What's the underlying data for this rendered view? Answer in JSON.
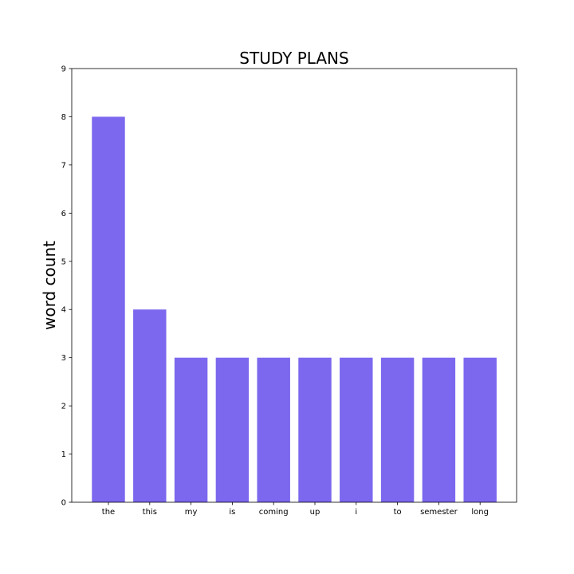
{
  "chart_data": {
    "type": "bar",
    "title": "STUDY PLANS",
    "xlabel": "",
    "ylabel": "word count",
    "categories": [
      "the",
      "this",
      "my",
      "is",
      "coming",
      "up",
      "i",
      "to",
      "semester",
      "long"
    ],
    "values": [
      8,
      4,
      3,
      3,
      3,
      3,
      3,
      3,
      3,
      3
    ],
    "ylim": [
      0,
      9
    ],
    "yticks": [
      0,
      1,
      2,
      3,
      4,
      5,
      6,
      7,
      8,
      9
    ],
    "grid": false,
    "bar_color": "#7b68ee"
  }
}
